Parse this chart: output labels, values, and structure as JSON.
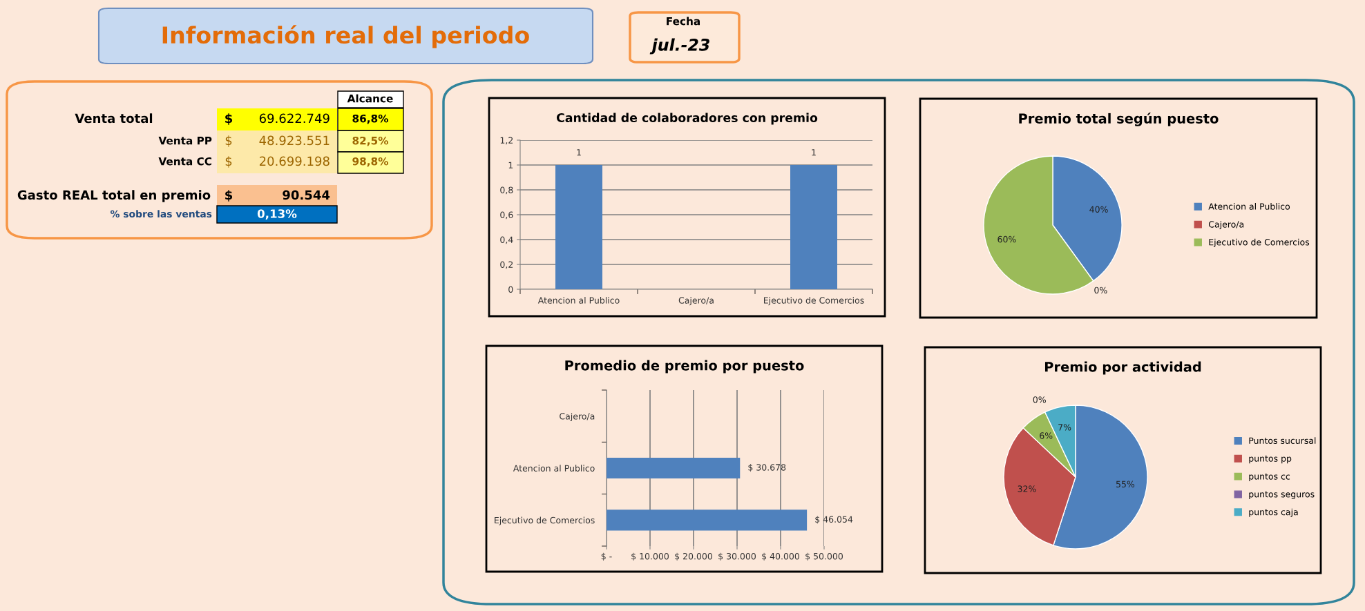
{
  "chart_data": [
    {
      "type": "other",
      "title": "Información real del periodo",
      "annotations": [
        "Fecha",
        "jul.-23",
        "Alcance",
        "Venta total",
        "$",
        "69.622.749",
        "86,8%",
        "Venta PP",
        "$",
        "48.923.551",
        "82,5%",
        "Venta CC",
        "$",
        "20.699.198",
        "98,8%",
        "Gasto REAL total en premio",
        "$",
        "90.544",
        "% sobre las ventas",
        "0,13%"
      ]
    },
    {
      "type": "bar",
      "title": "Cantidad de colaboradores con premio",
      "categories": [
        "Atencion al Publico",
        "Cajero/a",
        "Ejecutivo de Comercios"
      ],
      "values": [
        1,
        null,
        1
      ],
      "value_labels": [
        "1",
        null,
        "1"
      ],
      "color": "#4f81bd",
      "ylim": [
        0,
        1.2
      ],
      "yticks": [
        0,
        {
          "value": 0.2,
          "label": "0,2"
        },
        {
          "value": 0.4,
          "label": "0,4"
        },
        {
          "value": 0.6,
          "label": "0,6"
        },
        {
          "value": 0.8,
          "label": "0,8"
        },
        1,
        {
          "value": 1.2,
          "label": "1,2"
        }
      ],
      "grid": "y"
    },
    {
      "type": "pie",
      "title": "Premio total según puesto",
      "categories": [
        "Atencion al Publico",
        "Cajero/a",
        "Ejecutivo de Comercios"
      ],
      "values": [
        40,
        0,
        60
      ],
      "value_labels": [
        "40%",
        "0%",
        "60%"
      ],
      "colors": [
        "#4f81bd",
        "#c0504d",
        "#9bbb59"
      ],
      "legend": "right"
    },
    {
      "type": "bar",
      "orientation": "horizontal",
      "title": "Promedio de premio por puesto",
      "categories": [
        "Cajero/a",
        "Atencion al Publico",
        "Ejecutivo de Comercios"
      ],
      "values": [
        null,
        30678,
        46054
      ],
      "value_labels": [
        null,
        "$ 30.678",
        "$ 46.054"
      ],
      "color": "#4f81bd",
      "xlim": [
        0,
        50000
      ],
      "xticks": [
        {
          "value": 0,
          "label": "$ -"
        },
        {
          "value": 10000,
          "label": "$ 10.000"
        },
        {
          "value": 20000,
          "label": "$ 20.000"
        },
        {
          "value": 30000,
          "label": "$ 30.000"
        },
        {
          "value": 40000,
          "label": "$ 40.000"
        },
        {
          "value": 50000,
          "label": "$ 50.000"
        }
      ],
      "grid": "x"
    },
    {
      "type": "pie",
      "title": "Premio por actividad",
      "categories": [
        "Puntos sucursal",
        "puntos pp",
        "puntos cc",
        "puntos seguros",
        "puntos caja"
      ],
      "values": [
        55,
        32,
        6,
        0,
        7
      ],
      "value_labels": [
        "55%",
        "32%",
        "6%",
        "0%",
        "7%"
      ],
      "colors": [
        "#4f81bd",
        "#c0504d",
        "#9bbb59",
        "#8064a2",
        "#4bacc6"
      ],
      "legend": "right"
    }
  ]
}
